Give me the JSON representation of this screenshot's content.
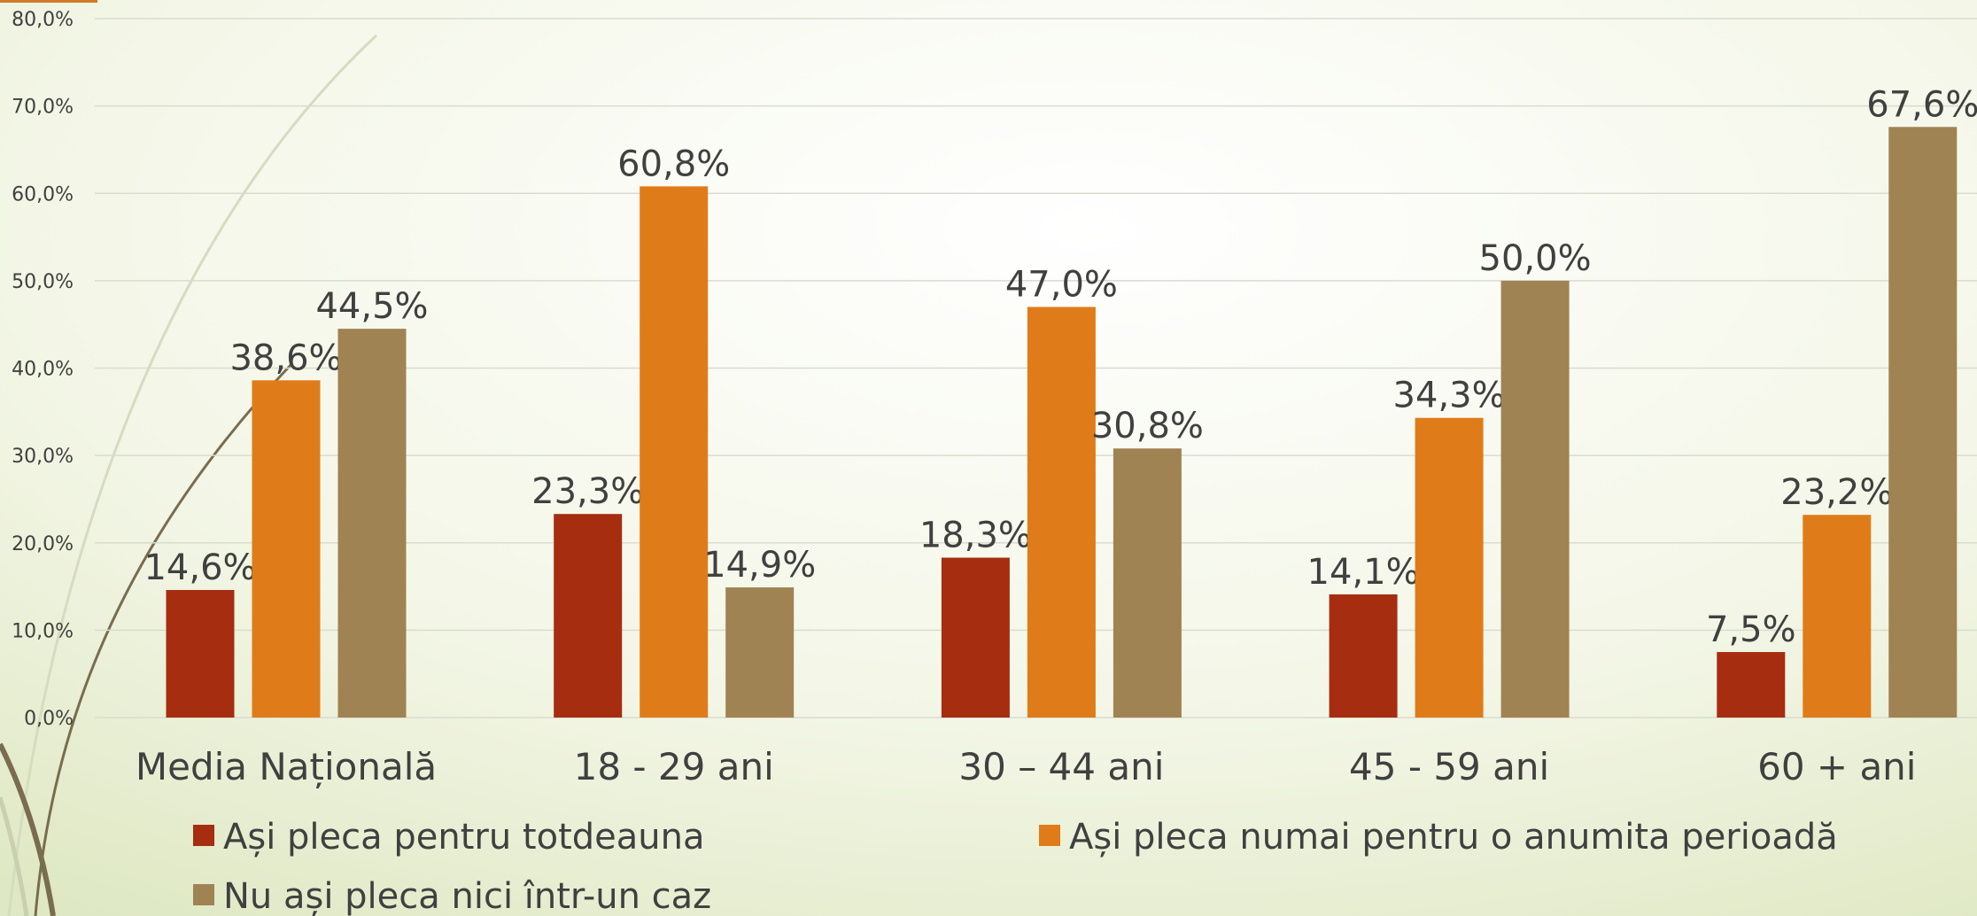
{
  "chart_data": {
    "type": "bar",
    "categories": [
      "Media Națională",
      "18 - 29 ani",
      "30 – 44 ani",
      "45 - 59 ani",
      "60 + ani"
    ],
    "series": [
      {
        "name": "Ași pleca pentru totdeauna",
        "color": "#a62d10",
        "values": [
          14.6,
          23.3,
          18.3,
          14.1,
          7.5
        ],
        "value_labels": [
          "14,6%",
          "23,3%",
          "18,3%",
          "14,1%",
          "7,5%"
        ]
      },
      {
        "name": "Ași pleca numai pentru o anumita perioadă",
        "color": "#df7c19",
        "values": [
          38.6,
          60.8,
          47.0,
          34.3,
          23.2
        ],
        "value_labels": [
          "38,6%",
          "60,8%",
          "47,0%",
          "34,3%",
          "23,2%"
        ]
      },
      {
        "name": "Nu ași pleca nici într-un caz",
        "color": "#a08352",
        "values": [
          44.5,
          14.9,
          30.8,
          50.0,
          67.6
        ],
        "value_labels": [
          "44,5%",
          "14,9%",
          "30,8%",
          "50,0%",
          "67,6%"
        ]
      }
    ],
    "ylim": [
      0,
      80
    ],
    "yticks": [
      {
        "value": 0,
        "label": "0,0%"
      },
      {
        "value": 10,
        "label": "10,0%"
      },
      {
        "value": 20,
        "label": "20,0%"
      },
      {
        "value": 30,
        "label": "30,0%"
      },
      {
        "value": 40,
        "label": "40,0%"
      },
      {
        "value": 50,
        "label": "50,0%"
      },
      {
        "value": 60,
        "label": "60,0%"
      },
      {
        "value": 70,
        "label": "70,0%"
      },
      {
        "value": 80,
        "label": "80,0%"
      }
    ],
    "grid": true,
    "legend": "bottom"
  }
}
